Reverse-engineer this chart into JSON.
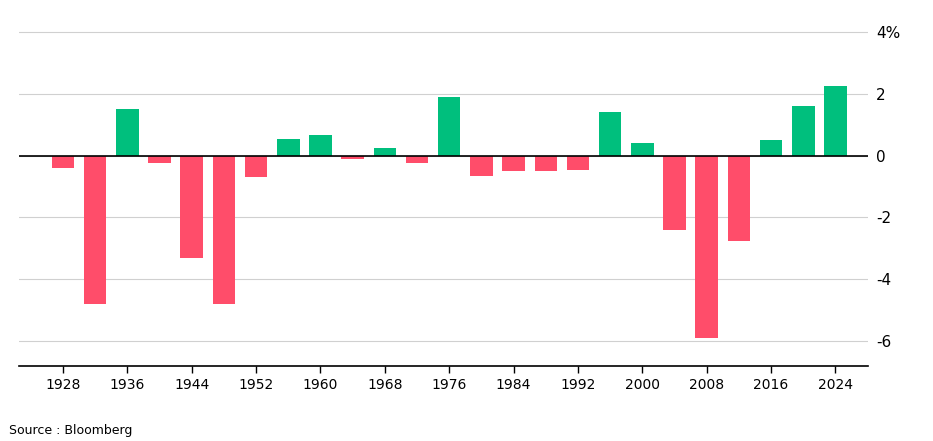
{
  "years": [
    1928,
    1932,
    1936,
    1940,
    1944,
    1948,
    1952,
    1956,
    1960,
    1964,
    1968,
    1972,
    1976,
    1980,
    1984,
    1988,
    1992,
    1996,
    2000,
    2004,
    2008,
    2012,
    2016,
    2020,
    2024
  ],
  "values": [
    -0.4,
    -4.8,
    1.5,
    -0.25,
    -3.3,
    -4.8,
    -0.7,
    0.55,
    0.65,
    -0.1,
    0.25,
    -0.25,
    1.9,
    -0.65,
    -0.5,
    -0.5,
    -0.45,
    1.4,
    0.4,
    -2.4,
    -5.9,
    -2.75,
    0.5,
    1.6,
    2.25
  ],
  "positive_color": "#00BF7D",
  "negative_color": "#FF4D6A",
  "background_color": "#FFFFFF",
  "grid_color": "#D0D0D0",
  "yticks": [
    -6,
    -4,
    -2,
    0,
    2,
    4
  ],
  "ytick_labels": [
    "-6",
    "-4",
    "-2",
    "0",
    "2",
    "4%"
  ],
  "ylim": [
    -6.8,
    4.6
  ],
  "xlim": [
    1922.5,
    2028
  ],
  "xtick_labels": [
    "1928",
    "1936",
    "1944",
    "1952",
    "1960",
    "1968",
    "1976",
    "1984",
    "1992",
    "2000",
    "2008",
    "2016",
    "2024"
  ],
  "xtick_positions": [
    1928,
    1936,
    1944,
    1952,
    1960,
    1968,
    1976,
    1984,
    1992,
    2000,
    2008,
    2016,
    2024
  ],
  "source_text": "Source : Bloomberg",
  "bar_width": 2.8
}
